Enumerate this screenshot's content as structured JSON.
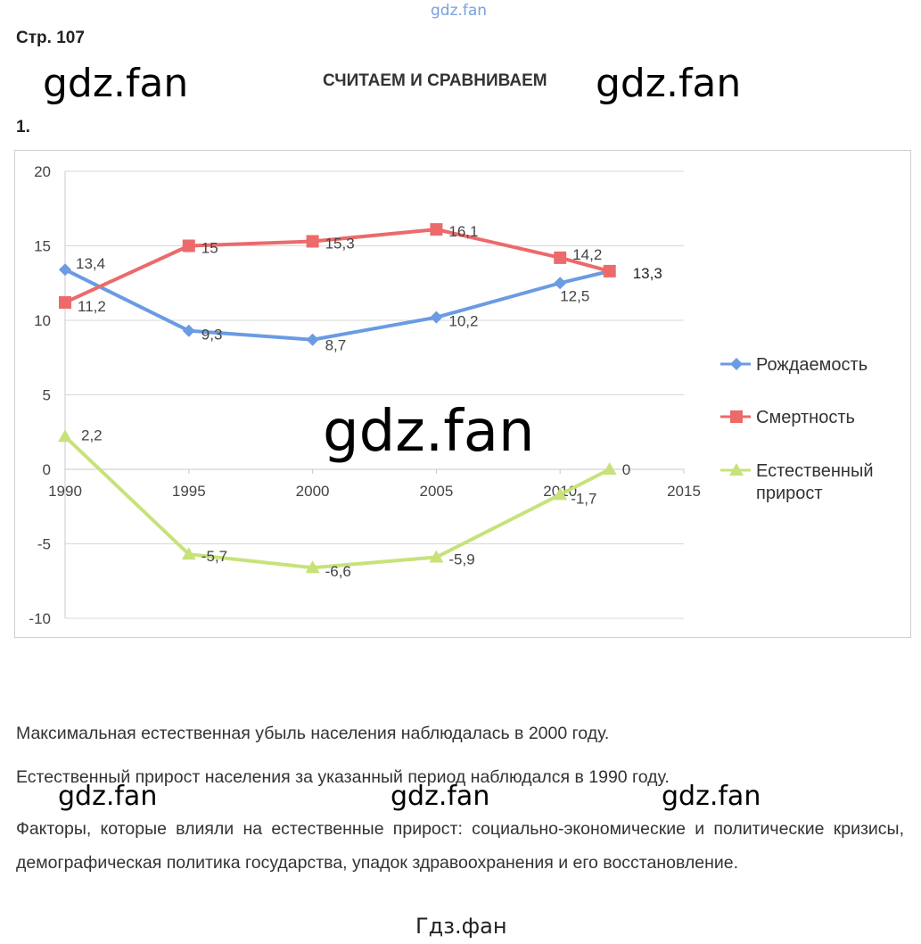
{
  "page": {
    "page_label": "Стр. 107",
    "section_title": "СЧИТАЕМ И СРАВНИВАЕМ",
    "task_number": "1.",
    "watermarks": [
      "gdz.fan",
      "gdz.fan",
      "gdz.fan",
      "gdz.fan",
      "gdz.fan",
      "gdz.fan",
      "gdz.fan"
    ],
    "footer": "Гдз.фан"
  },
  "answers": [
    "Максимальная естественная убыль населения наблюдалась в 2000 году.",
    "Естественный прирост населения за указанный период наблюдался в 1990 году.",
    "Факторы, которые влияли на естественные прирост: социально-экономические и политические кризисы, демографическая политика государства, упадок здравоохранения и его восстановление."
  ],
  "chart_data": {
    "type": "line",
    "title": "",
    "xlabel": "",
    "ylabel": "",
    "xlim": [
      1990,
      2015
    ],
    "ylim": [
      -10,
      20
    ],
    "x_ticks": [
      "1990",
      "1995",
      "2000",
      "2005",
      "2010",
      "2015"
    ],
    "y_ticks": [
      "20",
      "15",
      "10",
      "5",
      "0",
      "-5",
      "-10"
    ],
    "grid": "horizontal",
    "legend_position": "right",
    "x": [
      1990,
      1995,
      2000,
      2005,
      2010,
      2012
    ],
    "series": [
      {
        "name": "Рождаемость",
        "marker": "diamond",
        "color": "#6a9be3",
        "values": [
          13.4,
          9.3,
          8.7,
          10.2,
          12.5,
          13.3
        ],
        "labels": [
          "13,4",
          "9,3",
          "8,7",
          "10,2",
          "12,5",
          ""
        ]
      },
      {
        "name": "Смертность",
        "marker": "square",
        "color": "#ec6a6a",
        "values": [
          11.2,
          15,
          15.3,
          16.1,
          14.2,
          13.3
        ],
        "labels": [
          "11,2",
          "15",
          "15,3",
          "16,1",
          "14,2",
          "13,3"
        ]
      },
      {
        "name": "Естественный прирост",
        "marker": "triangle",
        "color": "#c7e27a",
        "values": [
          2.2,
          -5.7,
          -6.6,
          -5.9,
          -1.7,
          0
        ],
        "labels": [
          "2,2",
          "-5,7",
          "-6,6",
          "-5,9",
          "-1,7",
          "0"
        ]
      }
    ]
  }
}
